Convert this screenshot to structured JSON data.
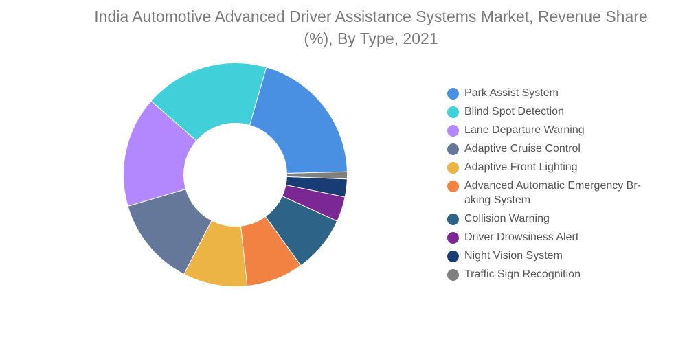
{
  "title": "India Automotive Advanced Driver Assistance Systems Market, Revenue Share\n(%), By Type, 2021",
  "chart_data": {
    "type": "pie",
    "title": "India Automotive Advanced Driver Assistance Systems Market, Revenue Share (%), By Type, 2021",
    "donut": true,
    "legend_position": "right",
    "categories": [
      "Park Assist System",
      "Blind Spot Detection",
      "Lane Departure Warning",
      "Adaptive Cruise Control",
      "Adaptive Front Lighting",
      "Advanced Automatic Emergency Braking System",
      "Collision Warning",
      "Driver Drowsiness Alert",
      "Night Vision System",
      "Traffic Sign Recognition"
    ],
    "legend_labels": [
      "Park Assist System",
      "Blind Spot Detection",
      "Lane Departure Warning",
      "Adaptive Cruise Control",
      "Adaptive Front Lighting",
      "Advanced Automatic Emergency Br-\naking System",
      "Collision Warning",
      "Driver Drowsiness Alert",
      "Night Vision System",
      "Traffic Sign Recognition"
    ],
    "values": [
      19.5,
      17.5,
      15.5,
      12.5,
      9.0,
      8.0,
      8.0,
      3.5,
      2.5,
      1.0
    ],
    "colors": [
      "#4a90e2",
      "#41d0d9",
      "#b388ff",
      "#66789a",
      "#ecb445",
      "#f28242",
      "#2d6387",
      "#7c2894",
      "#183d74",
      "#808080"
    ]
  }
}
